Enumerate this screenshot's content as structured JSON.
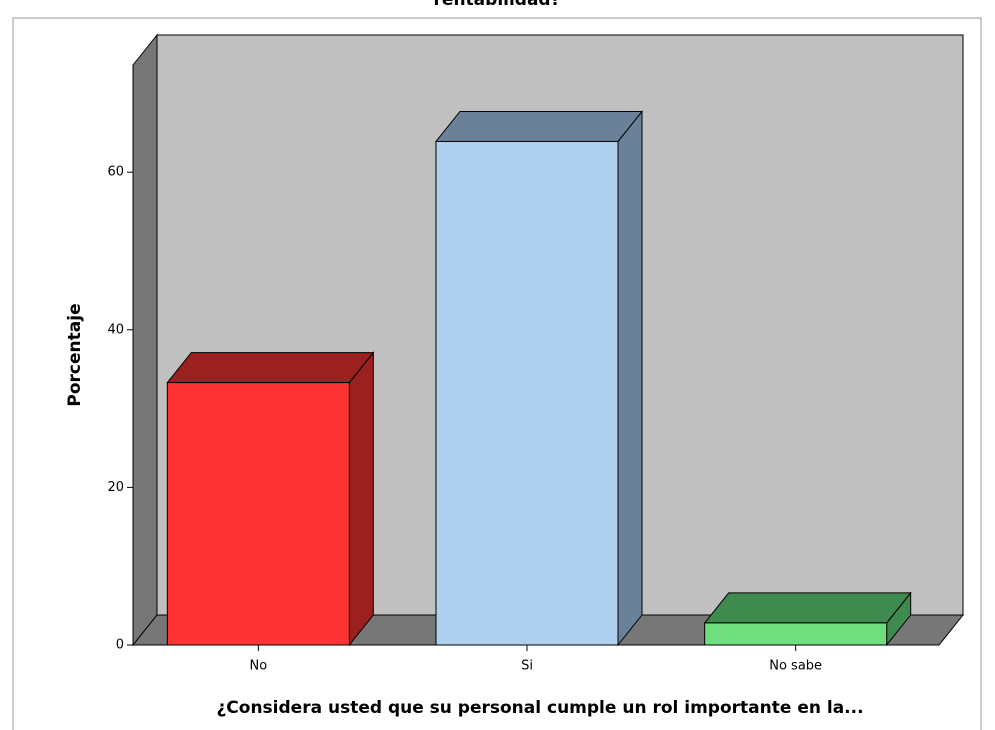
{
  "chart_data": {
    "type": "bar3d",
    "title": "rentabilidad?",
    "xlabel": "¿Considera usted que su personal cumple un rol importante en la...",
    "ylabel": "Porcentaje",
    "categories": [
      "No",
      "Si",
      "No sabe"
    ],
    "values": [
      33.3,
      63.9,
      2.8
    ],
    "colors": [
      "#ff3333",
      "#aed0ee",
      "#6fde7f"
    ],
    "side_colors": [
      "#9b2020",
      "#6a8199",
      "#3f8a4f"
    ],
    "ylim": [
      0,
      73.6
    ],
    "yticks": [
      0,
      20,
      40,
      60
    ]
  }
}
